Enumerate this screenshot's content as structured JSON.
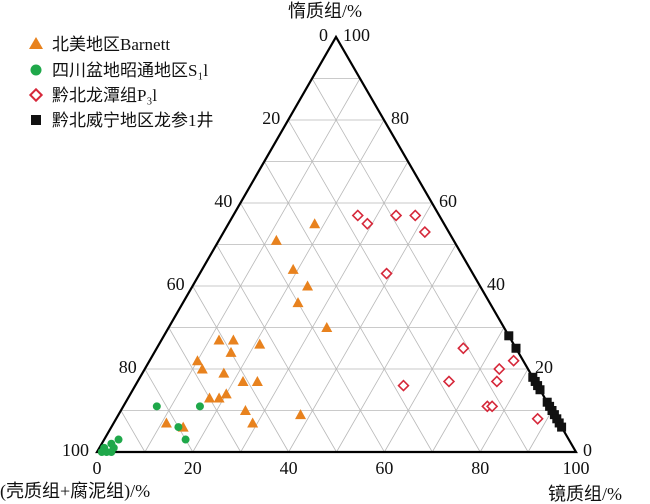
{
  "chart_data": {
    "type": "ternary-scatter",
    "axes": {
      "top": {
        "label": "惰质组/%",
        "ticks": [
          "0",
          "20",
          "40",
          "60",
          "80",
          "100"
        ]
      },
      "left": {
        "label": "(壳质组+腐泥组)/%",
        "ticks": [
          "100",
          "80",
          "60",
          "40",
          "20",
          "0"
        ]
      },
      "right": {
        "label": "镜质组/%",
        "ticks": [
          "100",
          "80",
          "60",
          "40",
          "20",
          "0"
        ]
      }
    },
    "bottom_ticks": [
      "0",
      "20",
      "40",
      "60",
      "80",
      "100"
    ],
    "left_ticks": [
      "100",
      "80",
      "60",
      "40",
      "20",
      "0"
    ],
    "right_ticks": [
      "0",
      "20",
      "40",
      "60",
      "80",
      "100"
    ],
    "grid": true,
    "legend_position": "top-left",
    "series": [
      {
        "name": "北美地区Barnett",
        "marker": "triangle",
        "color": "#e8821e",
        "points": [
          {
            "inertinite": 55,
            "vitrinite": 18
          },
          {
            "inertinite": 51,
            "vitrinite": 12
          },
          {
            "inertinite": 44,
            "vitrinite": 19
          },
          {
            "inertinite": 40,
            "vitrinite": 24
          },
          {
            "inertinite": 36,
            "vitrinite": 24
          },
          {
            "inertinite": 27,
            "vitrinite": 15
          },
          {
            "inertinite": 30,
            "vitrinite": 33
          },
          {
            "inertinite": 26,
            "vitrinite": 21
          },
          {
            "inertinite": 27,
            "vitrinite": 12
          },
          {
            "inertinite": 24,
            "vitrinite": 16
          },
          {
            "inertinite": 22,
            "vitrinite": 10
          },
          {
            "inertinite": 20,
            "vitrinite": 12
          },
          {
            "inertinite": 19,
            "vitrinite": 17
          },
          {
            "inertinite": 17,
            "vitrinite": 22
          },
          {
            "inertinite": 17,
            "vitrinite": 25
          },
          {
            "inertinite": 14,
            "vitrinite": 20
          },
          {
            "inertinite": 13,
            "vitrinite": 17
          },
          {
            "inertinite": 13,
            "vitrinite": 19
          },
          {
            "inertinite": 10,
            "vitrinite": 26
          },
          {
            "inertinite": 9,
            "vitrinite": 38
          },
          {
            "inertinite": 7,
            "vitrinite": 11
          },
          {
            "inertinite": 6,
            "vitrinite": 15
          },
          {
            "inertinite": 7,
            "vitrinite": 29
          }
        ]
      },
      {
        "name": "四川盆地昭通地区S₁l",
        "marker": "circle",
        "color": "#1fa84a",
        "points": [
          {
            "inertinite": 11,
            "vitrinite": 16
          },
          {
            "inertinite": 11,
            "vitrinite": 7
          },
          {
            "inertinite": 6,
            "vitrinite": 14
          },
          {
            "inertinite": 3,
            "vitrinite": 17
          },
          {
            "inertinite": 3,
            "vitrinite": 3
          },
          {
            "inertinite": 2,
            "vitrinite": 2
          },
          {
            "inertinite": 1,
            "vitrinite": 3
          },
          {
            "inertinite": 1,
            "vitrinite": 1
          },
          {
            "inertinite": 0,
            "vitrinite": 1
          },
          {
            "inertinite": 0,
            "vitrinite": 2
          },
          {
            "inertinite": 0,
            "vitrinite": 3
          }
        ]
      },
      {
        "name": "黔北龙潭组P₃l",
        "marker": "diamond-open",
        "color": "#d6283a",
        "points": [
          {
            "inertinite": 57,
            "vitrinite": 34
          },
          {
            "inertinite": 57,
            "vitrinite": 38
          },
          {
            "inertinite": 53,
            "vitrinite": 42
          },
          {
            "inertinite": 57,
            "vitrinite": 26
          },
          {
            "inertinite": 55,
            "vitrinite": 29
          },
          {
            "inertinite": 43,
            "vitrinite": 39
          },
          {
            "inertinite": 25,
            "vitrinite": 64
          },
          {
            "inertinite": 22,
            "vitrinite": 76
          },
          {
            "inertinite": 20,
            "vitrinite": 74
          },
          {
            "inertinite": 17,
            "vitrinite": 75
          },
          {
            "inertinite": 17,
            "vitrinite": 65
          },
          {
            "inertinite": 16,
            "vitrinite": 56
          },
          {
            "inertinite": 11,
            "vitrinite": 76
          },
          {
            "inertinite": 11,
            "vitrinite": 77
          },
          {
            "inertinite": 8,
            "vitrinite": 88
          }
        ]
      },
      {
        "name": "黔北威宁地区龙参1井",
        "marker": "square",
        "color": "#111111",
        "points": [
          {
            "inertinite": 28,
            "vitrinite": 72
          },
          {
            "inertinite": 25,
            "vitrinite": 75
          },
          {
            "inertinite": 18,
            "vitrinite": 82
          },
          {
            "inertinite": 17,
            "vitrinite": 83
          },
          {
            "inertinite": 16,
            "vitrinite": 84
          },
          {
            "inertinite": 15,
            "vitrinite": 85
          },
          {
            "inertinite": 12,
            "vitrinite": 88
          },
          {
            "inertinite": 11,
            "vitrinite": 89
          },
          {
            "inertinite": 10,
            "vitrinite": 90
          },
          {
            "inertinite": 9,
            "vitrinite": 91
          },
          {
            "inertinite": 8,
            "vitrinite": 92
          },
          {
            "inertinite": 7,
            "vitrinite": 93
          },
          {
            "inertinite": 6,
            "vitrinite": 94
          }
        ]
      }
    ]
  }
}
